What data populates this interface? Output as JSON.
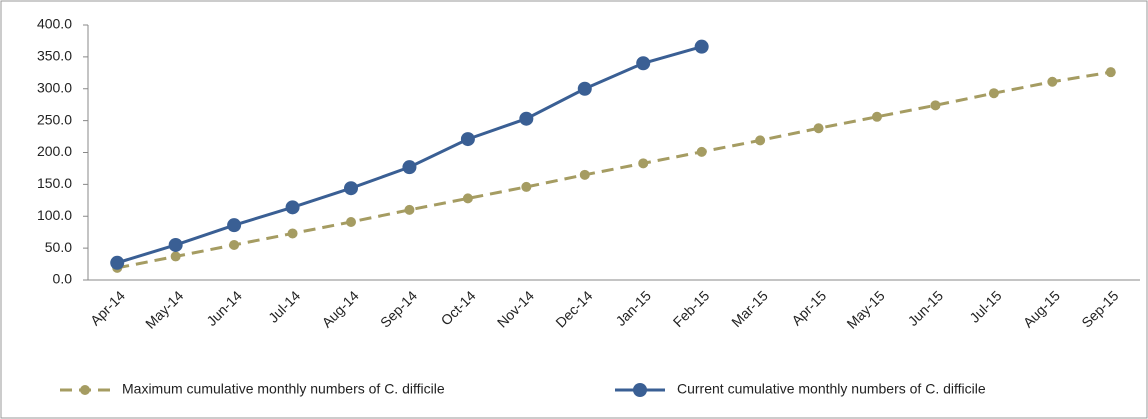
{
  "chart_data": {
    "type": "line",
    "categories": [
      "Apr-14",
      "May-14",
      "Jun-14",
      "Jul-14",
      "Aug-14",
      "Sep-14",
      "Oct-14",
      "Nov-14",
      "Dec-14",
      "Jan-15",
      "Feb-15",
      "Mar-15",
      "Apr-15",
      "May-15",
      "Jun-15",
      "Jul-15",
      "Aug-15",
      "Sep-15"
    ],
    "series": [
      {
        "name": "Maximum cumulative monthly numbers of C. difficile",
        "color": "#a59c62",
        "dashed": true,
        "values": [
          19,
          37,
          55,
          73,
          91,
          110,
          128,
          146,
          165,
          183,
          201,
          219,
          238,
          256,
          274,
          293,
          311,
          326
        ]
      },
      {
        "name": "Current cumulative monthly numbers of C. difficile",
        "color": "#3a5f94",
        "dashed": false,
        "values": [
          27,
          55,
          86,
          114,
          144,
          177,
          221,
          253,
          300,
          340,
          366,
          null,
          null,
          null,
          null,
          null,
          null,
          null
        ]
      }
    ],
    "ylim": [
      0,
      400
    ],
    "yticks": [
      {
        "value": 0,
        "label": "0.0"
      },
      {
        "value": 50,
        "label": "50.0"
      },
      {
        "value": 100,
        "label": "100.0"
      },
      {
        "value": 150,
        "label": "150.0"
      },
      {
        "value": 200,
        "label": "200.0"
      },
      {
        "value": 250,
        "label": "250.0"
      },
      {
        "value": 300,
        "label": "300.0"
      },
      {
        "value": 350,
        "label": "350.0"
      },
      {
        "value": 400,
        "label": "400.0"
      }
    ],
    "grid": false,
    "legend": "bottom"
  }
}
